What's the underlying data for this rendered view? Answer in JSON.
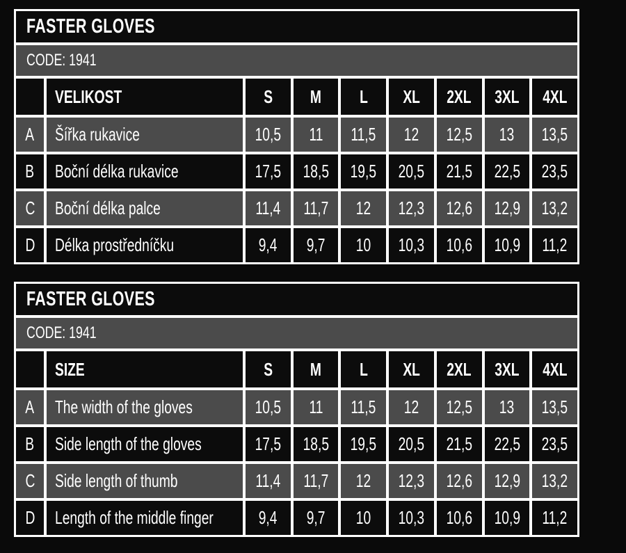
{
  "colors": {
    "page_background": "#0a0a0a",
    "cell_black": "#0c0c0c",
    "cell_gray": "#4b4b4b",
    "separator_white": "#ffffff",
    "text": "#ffffff"
  },
  "tables": [
    {
      "title": "FASTER GLOVES",
      "code": "CODE: 1941",
      "size_header": "VELIKOST",
      "sizes": [
        "S",
        "M",
        "L",
        "XL",
        "2XL",
        "3XL",
        "4XL"
      ],
      "rows": [
        {
          "letter": "A",
          "label": "Šířka rukavice",
          "values": [
            "10,5",
            "11",
            "11,5",
            "12",
            "12,5",
            "13",
            "13,5"
          ]
        },
        {
          "letter": "B",
          "label": "Boční délka rukavice",
          "values": [
            "17,5",
            "18,5",
            "19,5",
            "20,5",
            "21,5",
            "22,5",
            "23,5"
          ]
        },
        {
          "letter": "C",
          "label": "Boční délka palce",
          "values": [
            "11,4",
            "11,7",
            "12",
            "12,3",
            "12,6",
            "12,9",
            "13,2"
          ]
        },
        {
          "letter": "D",
          "label": "Délka prostředníčku",
          "values": [
            "9,4",
            "9,7",
            "10",
            "10,3",
            "10,6",
            "10,9",
            "11,2"
          ]
        }
      ]
    },
    {
      "title": "FASTER GLOVES",
      "code": "CODE: 1941",
      "size_header": "SIZE",
      "sizes": [
        "S",
        "M",
        "L",
        "XL",
        "2XL",
        "3XL",
        "4XL"
      ],
      "rows": [
        {
          "letter": "A",
          "label": "The width of the gloves",
          "values": [
            "10,5",
            "11",
            "11,5",
            "12",
            "12,5",
            "13",
            "13,5"
          ]
        },
        {
          "letter": "B",
          "label": "Side length of the gloves",
          "values": [
            "17,5",
            "18,5",
            "19,5",
            "20,5",
            "21,5",
            "22,5",
            "23,5"
          ]
        },
        {
          "letter": "C",
          "label": "Side length of thumb",
          "values": [
            "11,4",
            "11,7",
            "12",
            "12,3",
            "12,6",
            "12,9",
            "13,2"
          ]
        },
        {
          "letter": "D",
          "label": "Length of the middle finger",
          "values": [
            "9,4",
            "9,7",
            "10",
            "10,3",
            "10,6",
            "10,9",
            "11,2"
          ]
        }
      ]
    }
  ]
}
